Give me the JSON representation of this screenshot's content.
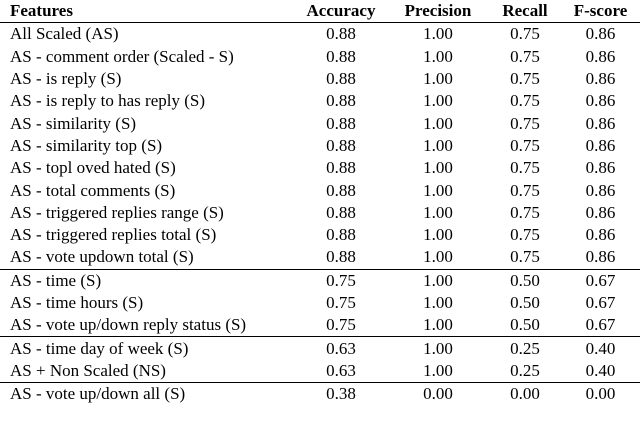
{
  "table": {
    "header": [
      "Features",
      "Accuracy",
      "Precision",
      "Recall",
      "F-score"
    ],
    "groups": [
      [
        [
          "All Scaled (AS)",
          "0.88",
          "1.00",
          "0.75",
          "0.86"
        ],
        [
          "AS - comment order (Scaled - S)",
          "0.88",
          "1.00",
          "0.75",
          "0.86"
        ],
        [
          "AS - is reply (S)",
          "0.88",
          "1.00",
          "0.75",
          "0.86"
        ],
        [
          "AS - is reply to has reply (S)",
          "0.88",
          "1.00",
          "0.75",
          "0.86"
        ],
        [
          "AS - similarity (S)",
          "0.88",
          "1.00",
          "0.75",
          "0.86"
        ],
        [
          "AS - similarity top (S)",
          "0.88",
          "1.00",
          "0.75",
          "0.86"
        ],
        [
          "AS - topl oved hated (S)",
          "0.88",
          "1.00",
          "0.75",
          "0.86"
        ],
        [
          "AS - total comments (S)",
          "0.88",
          "1.00",
          "0.75",
          "0.86"
        ],
        [
          "AS - triggered replies range (S)",
          "0.88",
          "1.00",
          "0.75",
          "0.86"
        ],
        [
          "AS - triggered replies total (S)",
          "0.88",
          "1.00",
          "0.75",
          "0.86"
        ],
        [
          "AS - vote updown total (S)",
          "0.88",
          "1.00",
          "0.75",
          "0.86"
        ]
      ],
      [
        [
          "AS - time (S)",
          "0.75",
          "1.00",
          "0.50",
          "0.67"
        ],
        [
          "AS - time hours (S)",
          "0.75",
          "1.00",
          "0.50",
          "0.67"
        ],
        [
          "AS - vote up/down reply status (S)",
          "0.75",
          "1.00",
          "0.50",
          "0.67"
        ]
      ],
      [
        [
          "AS - time day of week (S)",
          "0.63",
          "1.00",
          "0.25",
          "0.40"
        ],
        [
          "AS + Non Scaled (NS)",
          "0.63",
          "1.00",
          "0.25",
          "0.40"
        ]
      ],
      [
        [
          "AS - vote up/down all (S)",
          "0.38",
          "0.00",
          "0.00",
          "0.00"
        ]
      ]
    ]
  }
}
